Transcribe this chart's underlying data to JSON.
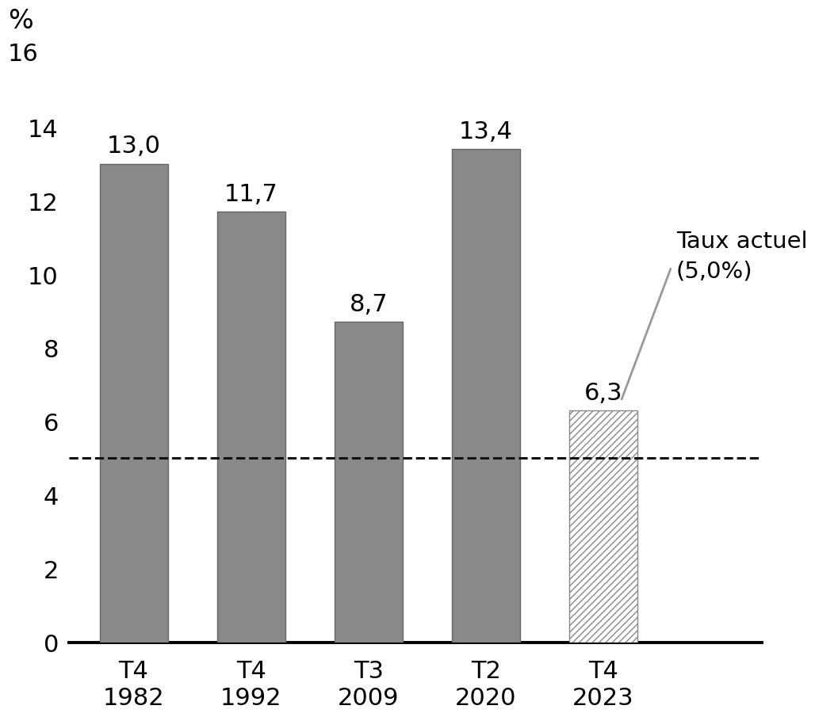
{
  "categories": [
    "T4\n1982",
    "T4\n1992",
    "T3\n2009",
    "T2\n2020",
    "T4\n2023"
  ],
  "values": [
    13.0,
    11.7,
    8.7,
    13.4,
    6.3
  ],
  "value_labels": [
    "13,0",
    "11,7",
    "8,7",
    "13,4",
    "6,3"
  ],
  "bar_color_solid": "#898989",
  "bar_color_hatch": "#ffffff",
  "bar_hatch": "////",
  "hatch_color": "#888888",
  "dashed_line_y": 5.0,
  "dashed_line_color": "#111111",
  "annotation_text": "Taux actuel\n(5,0%)",
  "annotation_line_color": "#999999",
  "ylim": [
    0,
    16
  ],
  "yticks": [
    0,
    2,
    4,
    6,
    8,
    10,
    12,
    14,
    16
  ],
  "ylabel_top": "%",
  "background_color": "#ffffff",
  "bar_edge_color": "#666666",
  "tick_fontsize": 22,
  "value_fontsize": 22,
  "annotation_fontsize": 21,
  "ylabel_fontsize": 24
}
